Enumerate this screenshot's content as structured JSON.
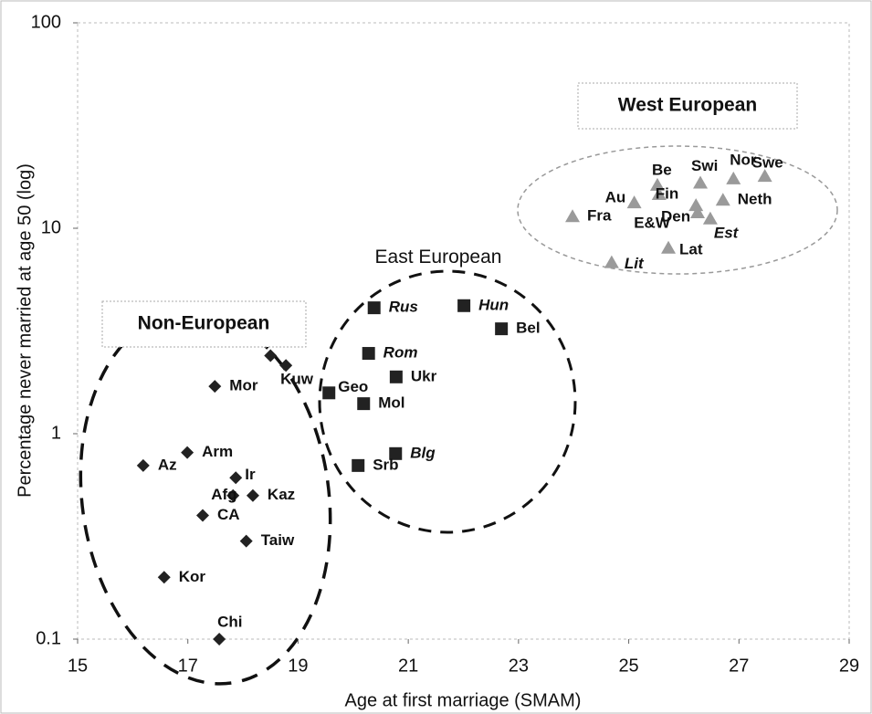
{
  "chart_data": {
    "type": "scatter",
    "xlabel": "Age at first marriage (SMAM)",
    "ylabel": "Percentage never married at age 50 (log)",
    "xlim": [
      15,
      29
    ],
    "xticks": [
      15,
      17,
      19,
      21,
      23,
      25,
      27,
      29
    ],
    "ylim": [
      0.1,
      100
    ],
    "yticks": [
      0.1,
      1,
      10,
      100
    ],
    "log_y": true,
    "series": [
      {
        "name": "Non-European",
        "color": "#222222",
        "marker": "diamond",
        "x": [
          17.49,
          16.99,
          16.19,
          17.87,
          17.82,
          18.18,
          17.27,
          18.06,
          16.57,
          17.57,
          18.78,
          18.5
        ],
        "y": [
          1.7,
          0.81,
          0.7,
          0.61,
          0.5,
          0.5,
          0.4,
          0.3,
          0.2,
          0.1,
          2.15,
          2.4
        ],
        "labels": [
          "Mor",
          "Arm",
          "Az",
          "Ir",
          "Afg",
          "Kaz",
          "CA",
          "Taiw",
          "Kor",
          "Chi",
          "Kuw",
          null
        ],
        "italic": [
          false,
          false,
          false,
          false,
          false,
          false,
          false,
          false,
          false,
          false,
          false,
          false
        ]
      },
      {
        "name": "East European",
        "color": "#222222",
        "marker": "square",
        "x": [
          20.38,
          22.01,
          22.69,
          20.28,
          20.78,
          19.56,
          20.19,
          20.77,
          20.09
        ],
        "y": [
          4.1,
          4.2,
          3.24,
          2.46,
          1.89,
          1.58,
          1.4,
          0.8,
          0.7
        ],
        "labels": [
          "Rus",
          "Hun",
          "Bel",
          "Rom",
          "Ukr",
          "Geo",
          "Mol",
          "Blg",
          "Srb"
        ],
        "italic": [
          true,
          true,
          false,
          true,
          false,
          false,
          false,
          true,
          false
        ]
      },
      {
        "name": "West European",
        "color": "#9a9a9a",
        "marker": "triangle",
        "x": [
          25.52,
          26.3,
          26.9,
          27.47,
          25.1,
          25.55,
          26.71,
          23.98,
          26.22,
          26.25,
          26.48,
          25.72,
          24.69
        ],
        "y": [
          16.2,
          16.6,
          17.4,
          17.9,
          13.3,
          14.6,
          13.7,
          11.4,
          12.9,
          11.9,
          11.1,
          8.0,
          6.8
        ],
        "labels": [
          "Be",
          "Swi",
          "Nor",
          "Swe",
          "Au",
          "Fin",
          "Neth",
          "Fra",
          "E&W",
          "Den",
          "Est",
          "Lat",
          "Lit"
        ],
        "italic": [
          false,
          false,
          false,
          false,
          false,
          false,
          false,
          false,
          false,
          false,
          true,
          false,
          true
        ]
      }
    ]
  }
}
